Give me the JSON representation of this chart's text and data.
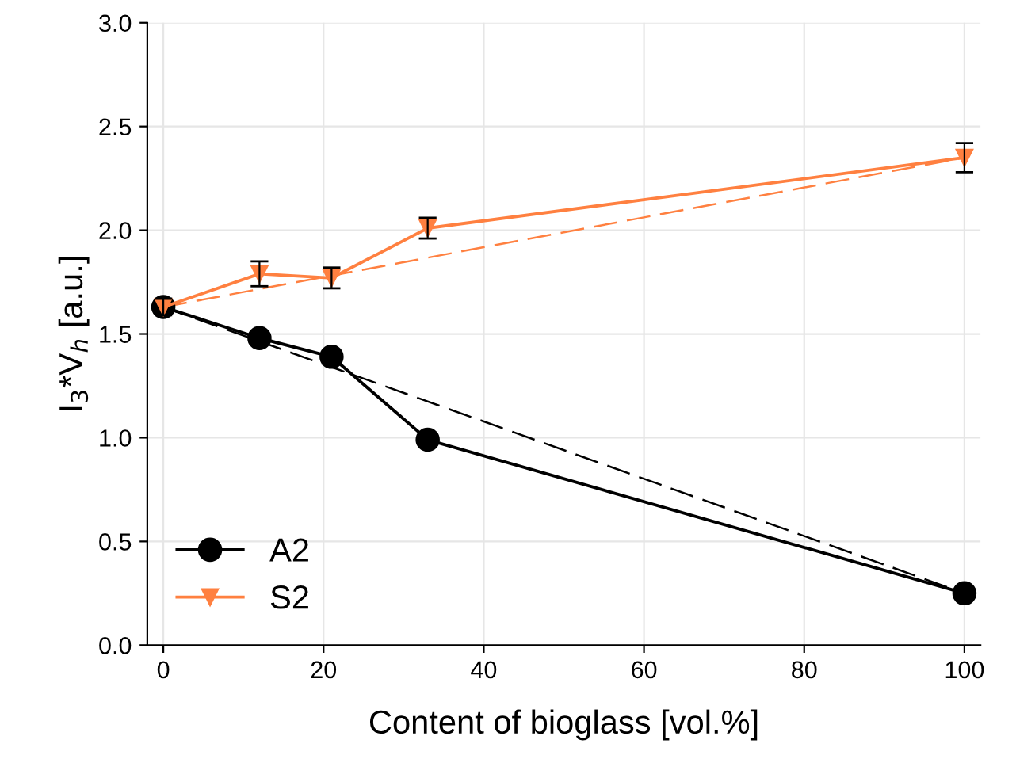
{
  "chart_data": {
    "type": "line",
    "xlabel": "Content of bioglass [vol.%]",
    "ylabel": "I$_{3}$*V$_{h}$ [a.u.]",
    "xlim": [
      -2,
      102
    ],
    "ylim": [
      0,
      3
    ],
    "xticks": [
      0,
      20,
      40,
      60,
      80,
      100
    ],
    "yticks": [
      {
        "value": 0,
        "label": "0.0"
      },
      0.5,
      {
        "value": 1,
        "label": "1.0"
      },
      1.5,
      {
        "value": 2,
        "label": "2.0"
      },
      2.5,
      {
        "value": 3,
        "label": "3.0"
      }
    ],
    "grid": true,
    "legend": "bottom left",
    "series": [
      {
        "name": "A2",
        "color": "#000000",
        "marker": "circle",
        "line_style": "solid",
        "x": [
          0,
          12,
          21,
          33,
          100
        ],
        "values": [
          1.63,
          1.48,
          1.39,
          0.99,
          0.25
        ],
        "errors": [
          null,
          0.02,
          0.03,
          0.02,
          0.02
        ]
      },
      {
        "name": "S2",
        "color": "#ff8040",
        "marker": "triangle",
        "line_style": "solid",
        "x": [
          0,
          12,
          21,
          33,
          100
        ],
        "values": [
          1.63,
          1.79,
          1.77,
          2.01,
          2.35
        ],
        "errors": [
          0.04,
          0.06,
          0.05,
          0.05,
          0.07
        ]
      },
      {
        "color": "#000000",
        "marker": "none",
        "line_style": "dashed",
        "x": [
          0,
          100
        ],
        "values": [
          1.63,
          0.25
        ]
      },
      {
        "color": "#ff8040",
        "marker": "none",
        "line_style": "dashed",
        "x": [
          0,
          100
        ],
        "values": [
          1.63,
          2.35
        ]
      }
    ]
  }
}
